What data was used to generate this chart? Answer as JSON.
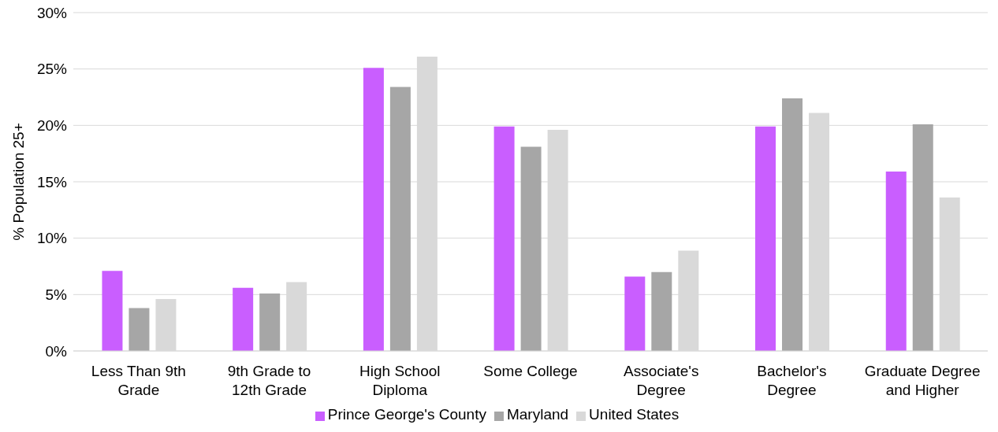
{
  "chart_data": {
    "type": "bar",
    "ylabel": "% Population 25+",
    "categories": [
      "Less Than 9th Grade",
      "9th Grade to 12th Grade",
      "High School Diploma",
      "Some College",
      "Associate's Degree",
      "Bachelor's Degree",
      "Graduate Degree and Higher"
    ],
    "series": [
      {
        "name": "Prince George's County",
        "color": "#c95eff",
        "values": [
          7.1,
          5.6,
          25.1,
          19.9,
          6.6,
          19.9,
          15.9
        ]
      },
      {
        "name": "Maryland",
        "color": "#a6a6a6",
        "values": [
          3.8,
          5.1,
          23.4,
          18.1,
          7.0,
          22.4,
          20.1
        ]
      },
      {
        "name": "United States",
        "color": "#d9d9d9",
        "values": [
          4.6,
          6.1,
          26.1,
          19.6,
          8.9,
          21.1,
          13.6
        ]
      }
    ],
    "ylim": [
      0,
      30
    ],
    "yticks": [
      {
        "value": 0,
        "label": "0%"
      },
      {
        "value": 5,
        "label": "5%"
      },
      {
        "value": 10,
        "label": "10%"
      },
      {
        "value": 15,
        "label": "15%"
      },
      {
        "value": 20,
        "label": "20%"
      },
      {
        "value": 25,
        "label": "25%"
      },
      {
        "value": 30,
        "label": "30%"
      }
    ],
    "grid": "y",
    "legend": "bottom"
  }
}
